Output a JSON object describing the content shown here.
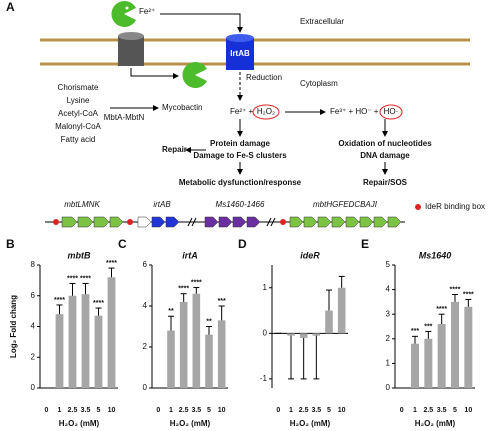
{
  "diagram": {
    "label": "A",
    "extracellular": "Extracellular",
    "cytoplasm": "Cytoplasm",
    "fe_top": "Fe²⁺",
    "irtab": "IrtAB",
    "reduction": "Reduction",
    "precursors": [
      "Chorismate",
      "Lysine",
      "Acetyl-CoA",
      "Malonyl-CoA",
      "Fatty acid"
    ],
    "mbta": "MbtA-MbtN",
    "mycobactin": "Mycobactin",
    "reaction_left": "Fe²⁺ +",
    "h2o2": "H₂O₂",
    "reaction_right": "Fe³⁺ + HO⁻ +",
    "ho_radical": "HO·",
    "protein_damage": "Protein damage",
    "fes": "Damage to Fe-S clusters",
    "repair": "Repair",
    "metabolic": "Metabolic dysfunction/response",
    "oxidation": "Oxidation of nucleotides",
    "dna": "DNA damage",
    "sos": "Repair/SOS",
    "genes": [
      "mbtLMNK",
      "irtAB",
      "Ms1460-1466",
      "mbtHGFEDCBAJI"
    ],
    "legend": "IdeR binding box"
  },
  "chart_data": [
    {
      "type": "bar",
      "panel": "B",
      "title": "mbtB",
      "y_label": "Log₂ Fold chang",
      "x_label": "H₂O₂ (mM)",
      "categories": [
        "0",
        "1",
        "2.5",
        "3.5",
        "5",
        "10"
      ],
      "values": [
        0,
        4.8,
        6.0,
        6.1,
        4.7,
        7.2
      ],
      "errors": [
        0,
        0.6,
        0.8,
        0.7,
        0.5,
        0.6
      ],
      "annotations": [
        null,
        "****",
        "****",
        "****",
        "****",
        "****"
      ],
      "ylim": [
        0,
        8
      ],
      "yticks": [
        0,
        2,
        4,
        6,
        8
      ],
      "color": "#a6a6a6"
    },
    {
      "type": "bar",
      "panel": "C",
      "title": "irtA",
      "x_label": "H₂O₂ (mM)",
      "categories": [
        "0",
        "1",
        "2.5",
        "3.5",
        "5",
        "10"
      ],
      "values": [
        0,
        2.8,
        4.2,
        4.6,
        2.6,
        3.3
      ],
      "errors": [
        0,
        0.7,
        0.4,
        0.3,
        0.4,
        0.7
      ],
      "annotations": [
        null,
        "**",
        "****",
        "****",
        "**",
        "***"
      ],
      "ylim": [
        0,
        6
      ],
      "yticks": [
        0,
        2,
        4,
        6
      ],
      "color": "#a6a6a6"
    },
    {
      "type": "bar",
      "panel": "D",
      "title": "ideR",
      "x_label": "H₂O₂ (mM)",
      "categories": [
        "0",
        "1",
        "2.5",
        "3.5",
        "5",
        "10"
      ],
      "values": [
        0,
        -0.05,
        -0.1,
        -0.05,
        0.5,
        1.0
      ],
      "errors": [
        0,
        0.95,
        0.9,
        0.95,
        0.45,
        0.25
      ],
      "annotations": [
        null,
        null,
        null,
        null,
        null,
        null
      ],
      "ylim": [
        -1.2,
        1.5
      ],
      "yticks": [
        -1,
        0,
        1
      ],
      "color": "#a6a6a6"
    },
    {
      "type": "bar",
      "panel": "E",
      "title": "Ms1640",
      "x_label": "H₂O₂ (mM)",
      "categories": [
        "0",
        "1",
        "2.5",
        "3.5",
        "5",
        "10"
      ],
      "values": [
        0,
        1.8,
        2.0,
        2.6,
        3.5,
        3.3
      ],
      "errors": [
        0,
        0.3,
        0.3,
        0.4,
        0.3,
        0.3
      ],
      "annotations": [
        null,
        "***",
        "***",
        "****",
        "****",
        "****"
      ],
      "ylim": [
        0,
        5
      ],
      "yticks": [
        0,
        1,
        2,
        3,
        4,
        5
      ],
      "color": "#a6a6a6"
    }
  ]
}
